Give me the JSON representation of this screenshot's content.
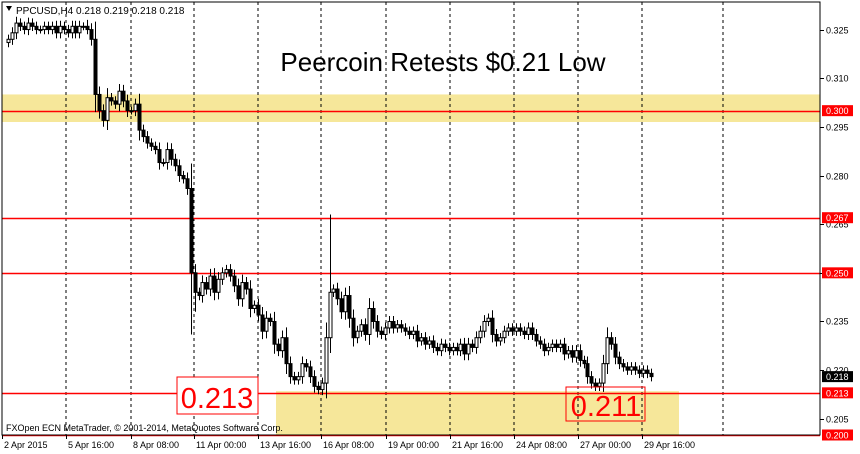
{
  "header": {
    "symbol_info": "PPCUSD,H4  0.218 0.219 0.218 0.218",
    "title": "Peercoin Retests $0.21 Low"
  },
  "footer": {
    "copyright": "FXOpen ECN MetaTrader, © 2001-2014, MetaQuotes Software Corp."
  },
  "annotations": {
    "left_low": "0.213",
    "right_low": "0.211"
  },
  "colors": {
    "background": "#ffffff",
    "candles": "#000000",
    "level_line": "#ff0000",
    "highlight_zone": "#f6e79a",
    "price_tag_bg": "#ff0000",
    "current_price_tag_bg": "#000000",
    "grid": "#000000"
  },
  "chart_data": {
    "type": "candlestick",
    "symbol": "PPCUSD",
    "timeframe": "H4",
    "y_ticks": [
      0.325,
      0.31,
      0.295,
      0.28,
      0.265,
      0.25,
      0.235,
      0.22,
      0.205
    ],
    "x_labels": [
      "2 Apr 2015",
      "5 Apr 16:00",
      "8 Apr 08:00",
      "11 Apr 00:00",
      "13 Apr 16:00",
      "16 Apr 08:00",
      "19 Apr 00:00",
      "21 Apr 16:00",
      "24 Apr 08:00",
      "27 Apr 00:00",
      "29 Apr 16:00"
    ],
    "ylim": [
      0.2,
      0.3335
    ],
    "grid": true,
    "levels": [
      {
        "price": 0.3,
        "label": "0.300"
      },
      {
        "price": 0.267,
        "label": "0.267"
      },
      {
        "price": 0.25,
        "label": "0.250"
      },
      {
        "price": 0.213,
        "label": "0.213"
      },
      {
        "price": 0.2,
        "label": "0.200"
      }
    ],
    "current_price": {
      "price": 0.218,
      "label": "0.218"
    },
    "zones": [
      {
        "from": 0.2965,
        "to": 0.305
      },
      {
        "from": 0.2,
        "to": 0.2135
      }
    ],
    "closes": [
      0.322,
      0.324,
      0.327,
      0.326,
      0.325,
      0.327,
      0.326,
      0.325,
      0.325,
      0.326,
      0.325,
      0.326,
      0.324,
      0.326,
      0.325,
      0.324,
      0.326,
      0.324,
      0.326,
      0.326,
      0.325,
      0.322,
      0.305,
      0.3,
      0.297,
      0.304,
      0.303,
      0.302,
      0.306,
      0.303,
      0.3,
      0.3,
      0.302,
      0.294,
      0.292,
      0.29,
      0.289,
      0.288,
      0.284,
      0.284,
      0.288,
      0.285,
      0.283,
      0.28,
      0.279,
      0.276,
      0.25,
      0.244,
      0.243,
      0.247,
      0.245,
      0.249,
      0.244,
      0.248,
      0.25,
      0.251,
      0.249,
      0.246,
      0.242,
      0.247,
      0.245,
      0.239,
      0.24,
      0.237,
      0.232,
      0.236,
      0.235,
      0.228,
      0.226,
      0.23,
      0.222,
      0.218,
      0.217,
      0.218,
      0.222,
      0.221,
      0.218,
      0.215,
      0.214,
      0.216,
      0.23,
      0.244,
      0.245,
      0.242,
      0.238,
      0.243,
      0.236,
      0.23,
      0.232,
      0.234,
      0.231,
      0.239,
      0.235,
      0.232,
      0.231,
      0.233,
      0.235,
      0.233,
      0.234,
      0.233,
      0.232,
      0.231,
      0.232,
      0.229,
      0.23,
      0.228,
      0.229,
      0.227,
      0.226,
      0.228,
      0.227,
      0.226,
      0.227,
      0.226,
      0.228,
      0.225,
      0.228,
      0.227,
      0.23,
      0.232,
      0.235,
      0.236,
      0.231,
      0.229,
      0.23,
      0.232,
      0.233,
      0.232,
      0.233,
      0.232,
      0.231,
      0.233,
      0.231,
      0.229,
      0.228,
      0.226,
      0.227,
      0.228,
      0.227,
      0.228,
      0.225,
      0.226,
      0.224,
      0.226,
      0.223,
      0.222,
      0.218,
      0.216,
      0.215,
      0.216,
      0.222,
      0.23,
      0.228,
      0.224,
      0.222,
      0.221,
      0.22,
      0.221,
      0.22,
      0.219,
      0.22,
      0.219,
      0.218
    ]
  }
}
